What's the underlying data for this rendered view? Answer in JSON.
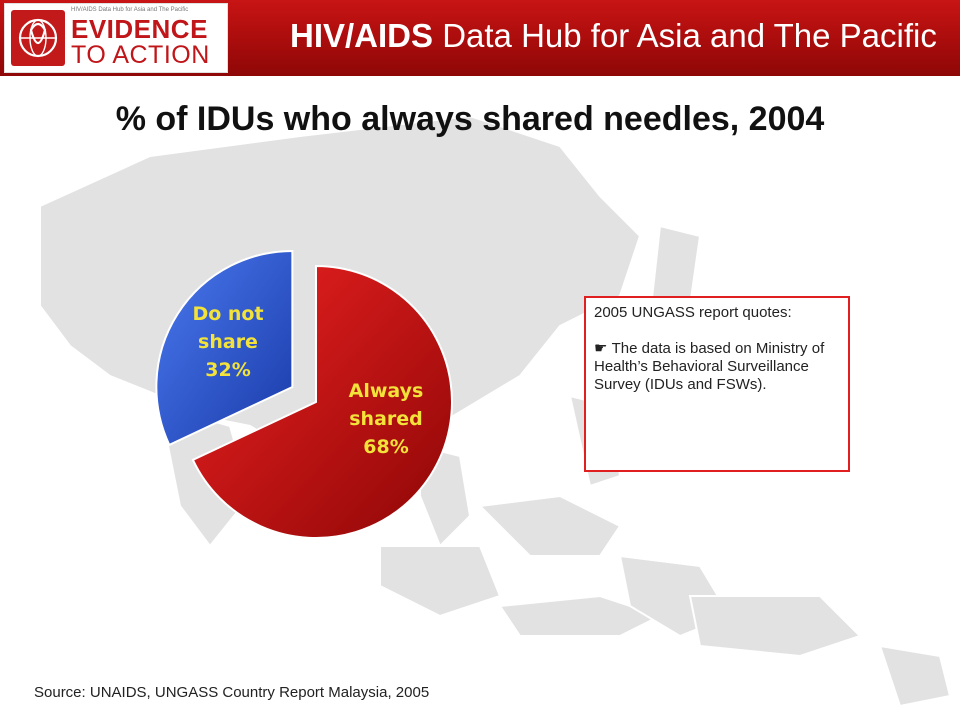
{
  "header": {
    "logo_small_text": "HIV/AIDS Data Hub for Asia and The Pacific",
    "logo_line1": "EVIDENCE",
    "logo_line2": "TO ACTION",
    "title_bold": "HIV/AIDS",
    "title_rest": " Data Hub for Asia and The Pacific"
  },
  "page_title": "% of IDUs who always shared needles, 2004",
  "chart_data": {
    "type": "pie",
    "slices": [
      {
        "label_line1": "Do not",
        "label_line2": "share",
        "percent_text": "32%",
        "value": 32,
        "color": "#2b57e0",
        "text_color": "#f2e23a",
        "exploded": true
      },
      {
        "label_line1": "Always",
        "label_line2": "shared",
        "percent_text": "68%",
        "value": 68,
        "color": "#d01010",
        "text_color": "#f2e23a",
        "exploded": false
      }
    ]
  },
  "note": {
    "line1": "2005 UNGASS report quotes:",
    "bullet_glyph": "☛",
    "line2": "The data is based on Ministry of Health’s Behavioral Surveillance Survey (IDUs and FSWs).",
    "border_color": "#e02020"
  },
  "source": "Source: UNAIDS, UNGASS Country Report Malaysia, 2005"
}
